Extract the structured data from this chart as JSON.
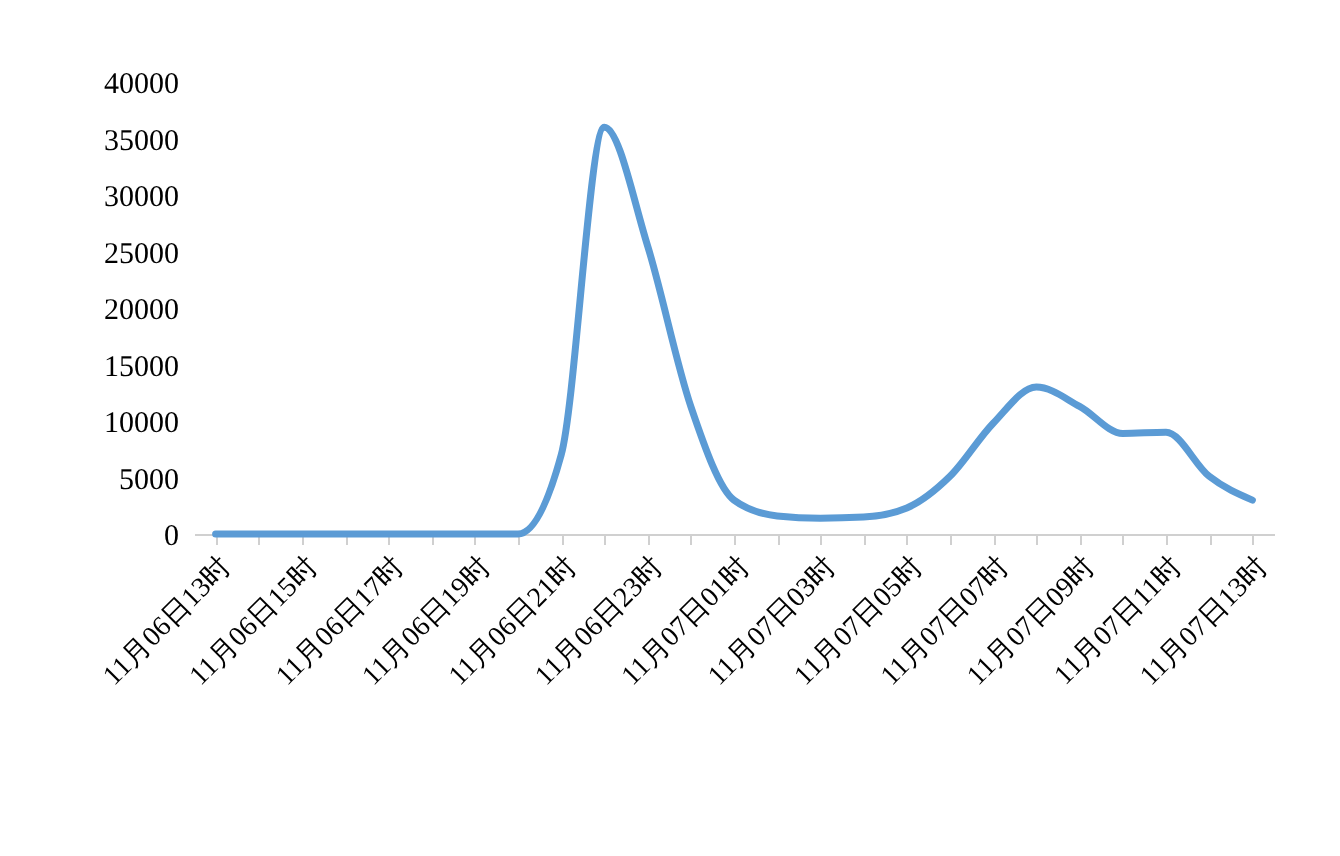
{
  "chart_data": {
    "type": "line",
    "categories": [
      "11月06日13时",
      null,
      "11月06日15时",
      null,
      "11月06日17时",
      null,
      "11月06日19时",
      null,
      "11月06日21时",
      null,
      "11月06日23时",
      null,
      "11月07日01时",
      null,
      "11月07日03时",
      null,
      "11月07日05时",
      null,
      "11月07日07时",
      null,
      "11月07日09时",
      null,
      "11月07日11时",
      null,
      "11月07日13时"
    ],
    "series": [
      {
        "color": "#5b9bd5",
        "values": [
          0,
          0,
          0,
          0,
          0,
          0,
          0,
          0,
          7000,
          36000,
          25500,
          11300,
          3000,
          1600,
          1400,
          1500,
          2300,
          5100,
          9800,
          13000,
          11300,
          8900,
          9000,
          5100,
          3000
        ]
      }
    ],
    "ylim": [
      0,
      40000
    ],
    "yticks": [
      0,
      5000,
      10000,
      15000,
      20000,
      25000,
      30000,
      35000,
      40000
    ]
  }
}
